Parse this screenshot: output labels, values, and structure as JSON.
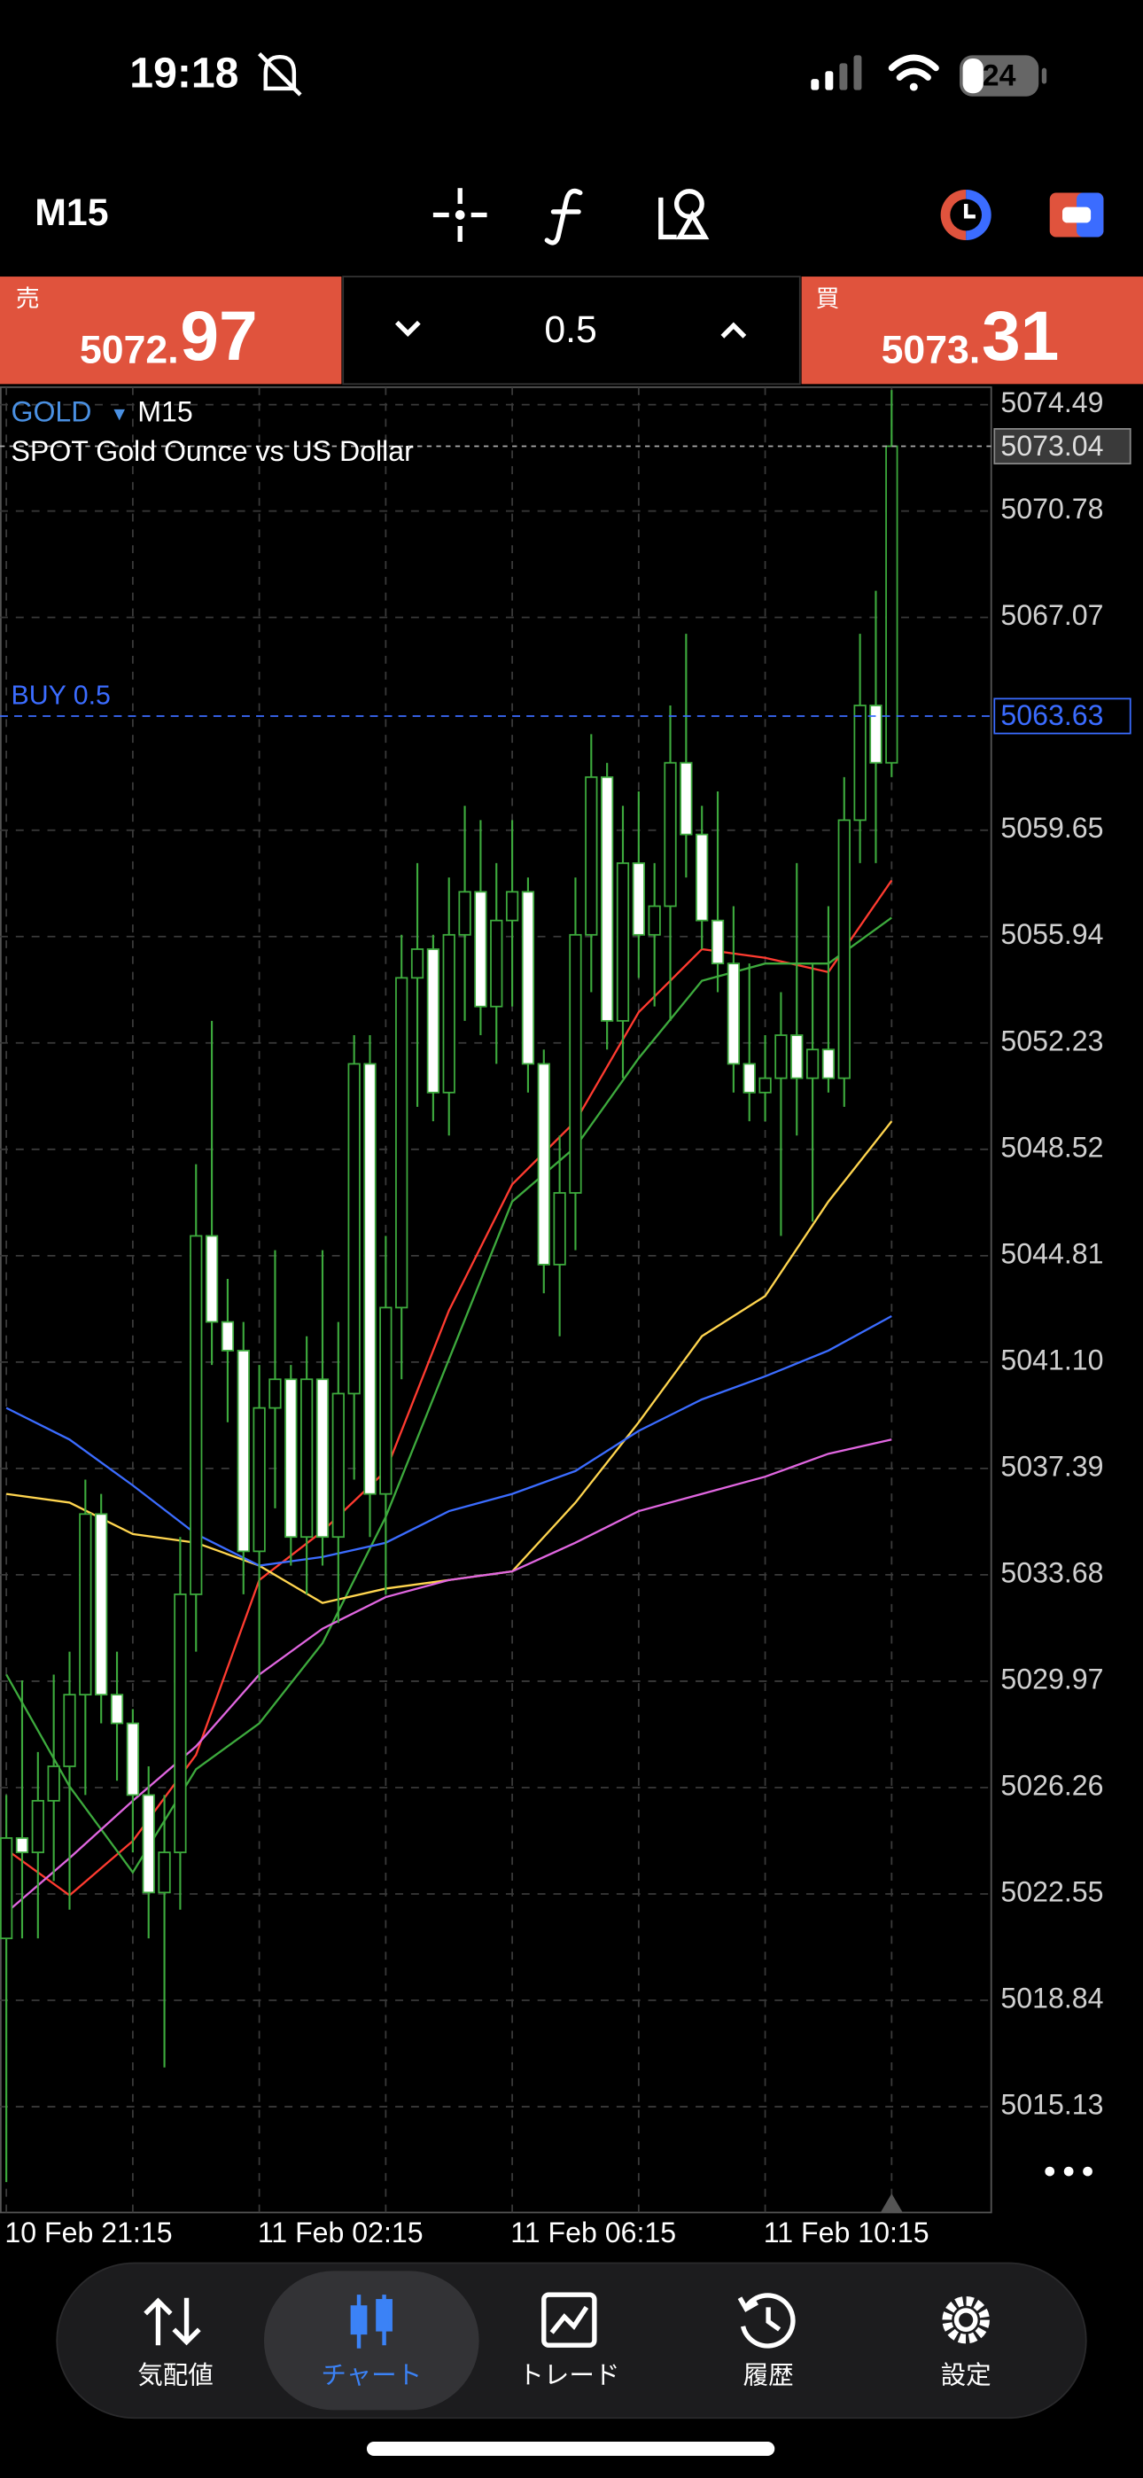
{
  "status_bar": {
    "time": "19:18",
    "battery": "24"
  },
  "toolbar": {
    "timeframe": "M15"
  },
  "trade_panel": {
    "sell_label": "売",
    "sell_price_main": "5072.",
    "sell_price_big": "97",
    "volume": "0.5",
    "buy_label": "買",
    "buy_price_main": "5073.",
    "buy_price_big": "31"
  },
  "chart_data": {
    "type": "candlestick",
    "symbol": "GOLD",
    "timeframe": "M15",
    "description": "SPOT Gold Ounce vs US Dollar",
    "categories": [
      "10 Feb 21:15",
      null,
      null,
      null,
      null,
      null,
      null,
      null,
      null,
      null,
      null,
      null,
      null,
      null,
      null,
      null,
      "11 Feb 02:15",
      null,
      null,
      null,
      null,
      null,
      null,
      null,
      null,
      null,
      null,
      null,
      null,
      null,
      null,
      null,
      "11 Feb 06:15",
      null,
      null,
      null,
      null,
      null,
      null,
      null,
      null,
      null,
      null,
      null,
      null,
      null,
      null,
      null,
      "11 Feb 10:15",
      null,
      null,
      null,
      null,
      null,
      null,
      null,
      null
    ],
    "open": [
      5021,
      5024.5,
      5024,
      5025.8,
      5027,
      5029.5,
      5035.8,
      5029.5,
      5028.5,
      5026,
      5022.6,
      5024,
      5033,
      5045.5,
      5042.5,
      5041.5,
      5034.5,
      5039.5,
      5040.5,
      5035,
      5040.5,
      5035,
      5040,
      5051.5,
      5036.5,
      5043,
      5054.5,
      5055.5,
      5050.5,
      5056,
      5057.5,
      5053.5,
      5056.5,
      5057.5,
      5051.5,
      5044.5,
      5047,
      5056,
      5061.5,
      5053,
      5058.5,
      5056,
      5057,
      5062,
      5059.5,
      5056.5,
      5055,
      5051.5,
      5050.5,
      5051,
      5052.5,
      5051,
      5052,
      5051,
      5060,
      5064,
      5062
    ],
    "high": [
      5026,
      5030,
      5027.5,
      5030.2,
      5031,
      5037,
      5036.5,
      5031,
      5029,
      5027,
      5026,
      5035,
      5048,
      5053,
      5044,
      5042.5,
      5041,
      5045,
      5041,
      5042,
      5045,
      5042.5,
      5052.5,
      5052.5,
      5045.5,
      5056,
      5058.5,
      5056,
      5058,
      5060.5,
      5060,
      5058.5,
      5060,
      5058,
      5052,
      5049,
      5058,
      5063,
      5062,
      5060.5,
      5061,
      5058.5,
      5064,
      5066.5,
      5060.5,
      5061,
      5057,
      5055,
      5052.5,
      5054,
      5058.5,
      5055,
      5057,
      5061.5,
      5066.5,
      5068,
      5075
    ],
    "low": [
      5012.5,
      5021,
      5021,
      5023,
      5022,
      5026,
      5028.5,
      5026.5,
      5024,
      5021,
      5016.5,
      5022,
      5031,
      5041,
      5039,
      5033,
      5030,
      5036,
      5034,
      5033,
      5034,
      5032,
      5037,
      5035,
      5033,
      5040.5,
      5050,
      5049.5,
      5049,
      5053,
      5052.5,
      5051.5,
      5053.5,
      5050.5,
      5043.5,
      5042,
      5045,
      5054,
      5052,
      5051,
      5054.5,
      5053.5,
      5053,
      5058,
      5055.5,
      5054,
      5050.5,
      5049.5,
      5049.5,
      5045.5,
      5049,
      5046,
      5050.5,
      5050,
      5058.5,
      5058.5,
      5061.5
    ],
    "close": [
      5024.5,
      5024,
      5025.8,
      5027,
      5029.5,
      5035.8,
      5029.5,
      5028.5,
      5026,
      5022.6,
      5024,
      5033,
      5045.5,
      5042.5,
      5041.5,
      5034.5,
      5039.5,
      5040.5,
      5035,
      5040.5,
      5035,
      5040,
      5051.5,
      5036.5,
      5043,
      5054.5,
      5055.5,
      5050.5,
      5056,
      5057.5,
      5053.5,
      5056.5,
      5057.5,
      5051.5,
      5044.5,
      5047,
      5056,
      5061.5,
      5053,
      5058.5,
      5056,
      5057,
      5062,
      5059.5,
      5056.5,
      5055,
      5051.5,
      5050.5,
      5051,
      5052.5,
      5051,
      5052,
      5051,
      5060,
      5064,
      5062,
      5073.04
    ],
    "up_color": "#000000",
    "down_color": "#ffffff",
    "wick_color": "#3daa3d",
    "series": [
      {
        "color": "#ff3b30",
        "x": [
          0,
          4,
          8,
          12,
          16,
          20,
          24,
          28,
          32,
          36,
          40,
          44,
          48,
          52,
          56
        ],
        "values": [
          5024.1,
          5022.5,
          5024.4,
          5027.4,
          5033.5,
          5035.2,
          5037.3,
          5042.9,
          5047.3,
          5049.5,
          5053.3,
          5055.5,
          5055.2,
          5054.7,
          5057.9
        ]
      },
      {
        "color": "#3daa3d",
        "x": [
          0,
          4,
          8,
          12,
          16,
          20,
          24,
          28,
          32,
          36,
          40,
          44,
          48,
          52,
          56
        ],
        "values": [
          5030.2,
          5026.3,
          5023.3,
          5026.9,
          5028.5,
          5031.3,
          5035.7,
          5041.2,
          5046.7,
          5048.6,
          5051.7,
          5054.4,
          5055,
          5055,
          5056.6
        ]
      },
      {
        "color": "#ffd54f",
        "x": [
          0,
          4,
          8,
          12,
          16,
          20,
          24,
          28,
          32,
          36,
          40,
          44,
          48,
          52,
          56
        ],
        "values": [
          5036.5,
          5036.2,
          5035.1,
          5034.8,
          5034,
          5032.7,
          5033.2,
          5033.5,
          5033.8,
          5036.2,
          5039,
          5042,
          5043.4,
          5046.7,
          5049.5
        ]
      },
      {
        "color": "#3b6cff",
        "x": [
          0,
          4,
          8,
          12,
          16,
          20,
          24,
          28,
          32,
          36,
          40,
          44,
          48,
          52,
          56
        ],
        "values": [
          5039.5,
          5038.4,
          5036.8,
          5035.1,
          5034,
          5034.3,
          5034.8,
          5035.9,
          5036.5,
          5037.3,
          5038.7,
          5039.8,
          5040.6,
          5041.5,
          5042.7
        ]
      },
      {
        "color": "#e066e0",
        "x": [
          0,
          4,
          8,
          12,
          16,
          20,
          24,
          28,
          32,
          36,
          40,
          44,
          48,
          52,
          56
        ],
        "values": [
          5021.9,
          5023.8,
          5025.8,
          5027.7,
          5030.2,
          5031.8,
          5032.9,
          5033.5,
          5033.8,
          5034.8,
          5035.9,
          5036.5,
          5037.1,
          5037.9,
          5038.4
        ]
      }
    ],
    "bid": 5073.04,
    "order_line": {
      "label": "BUY 0.5",
      "value": 5063.63
    },
    "ylim": [
      5011.44,
      5075.1
    ],
    "yticks": [
      5074.49,
      5070.78,
      5067.07,
      5059.65,
      5055.94,
      5052.23,
      5048.52,
      5044.81,
      {
        "value": 5041.1,
        "label": "5041.10"
      },
      5037.39,
      5033.68,
      5029.97,
      5026.26,
      5022.55,
      5018.84,
      5015.13
    ],
    "grid": true
  },
  "tab_bar": {
    "tabs": [
      "気配値",
      "チャート",
      "トレード",
      "履歴",
      "設定"
    ],
    "active": 1
  }
}
